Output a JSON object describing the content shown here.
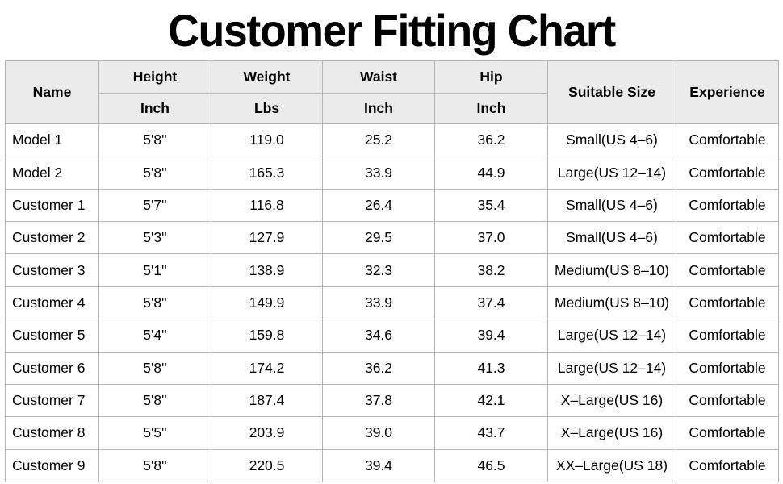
{
  "title": "Customer Fitting Chart",
  "colors": {
    "background": "#ffffff",
    "header_background": "#ebebeb",
    "grid_border": "#b3b3b3",
    "text": "#000000"
  },
  "chart_data": {
    "type": "table",
    "title": "Customer Fitting Chart",
    "header": {
      "name": "Name",
      "height": "Height",
      "height_unit": "Inch",
      "weight": "Weight",
      "weight_unit": "Lbs",
      "waist": "Waist",
      "waist_unit": "Inch",
      "hip": "Hip",
      "hip_unit": "Inch",
      "suitable_size": "Suitable Size",
      "experience": "Experience"
    },
    "rows": [
      {
        "name": "Model 1",
        "height": "5'8''",
        "weight": "119.0",
        "waist": "25.2",
        "hip": "36.2",
        "size": "Small(US 4–6)",
        "experience": "Comfortable"
      },
      {
        "name": "Model 2",
        "height": "5'8''",
        "weight": "165.3",
        "waist": "33.9",
        "hip": "44.9",
        "size": "Large(US 12–14)",
        "experience": "Comfortable"
      },
      {
        "name": "Customer 1",
        "height": "5'7''",
        "weight": "116.8",
        "waist": "26.4",
        "hip": "35.4",
        "size": "Small(US 4–6)",
        "experience": "Comfortable"
      },
      {
        "name": "Customer 2",
        "height": "5'3''",
        "weight": "127.9",
        "waist": "29.5",
        "hip": "37.0",
        "size": "Small(US 4–6)",
        "experience": "Comfortable"
      },
      {
        "name": "Customer 3",
        "height": "5'1''",
        "weight": "138.9",
        "waist": "32.3",
        "hip": "38.2",
        "size": "Medium(US 8–10)",
        "experience": "Comfortable"
      },
      {
        "name": "Customer 4",
        "height": "5'8''",
        "weight": "149.9",
        "waist": "33.9",
        "hip": "37.4",
        "size": "Medium(US 8–10)",
        "experience": "Comfortable"
      },
      {
        "name": "Customer 5",
        "height": "5'4''",
        "weight": "159.8",
        "waist": "34.6",
        "hip": "39.4",
        "size": "Large(US 12–14)",
        "experience": "Comfortable"
      },
      {
        "name": "Customer 6",
        "height": "5'8''",
        "weight": "174.2",
        "waist": "36.2",
        "hip": "41.3",
        "size": "Large(US 12–14)",
        "experience": "Comfortable"
      },
      {
        "name": "Customer 7",
        "height": "5'8''",
        "weight": "187.4",
        "waist": "37.8",
        "hip": "42.1",
        "size": "X–Large(US 16)",
        "experience": "Comfortable"
      },
      {
        "name": "Customer 8",
        "height": "5'5''",
        "weight": "203.9",
        "waist": "39.0",
        "hip": "43.7",
        "size": "X–Large(US 16)",
        "experience": "Comfortable"
      },
      {
        "name": "Customer 9",
        "height": "5'8''",
        "weight": "220.5",
        "waist": "39.4",
        "hip": "46.5",
        "size": "XX–Large(US 18)",
        "experience": "Comfortable"
      }
    ]
  }
}
